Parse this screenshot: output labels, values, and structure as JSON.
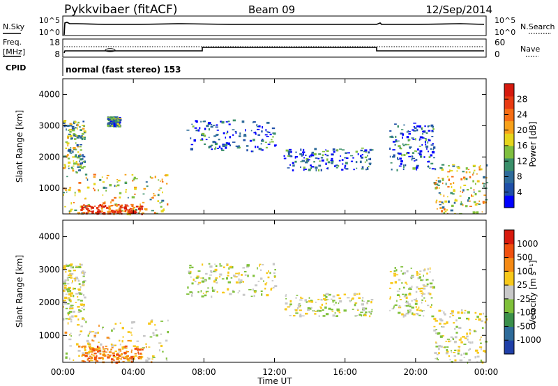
{
  "header": {
    "station": "Pykkvibaer (fitACF)",
    "beam": "Beam 09",
    "date": "12/Sep/2014"
  },
  "summary_panels": {
    "nsky_label": "N.Sky",
    "nsky_ticks": [
      "10^5",
      "10^0"
    ],
    "nsearch_label": "N.Search",
    "nsearch_ticks": [
      "10^5",
      "10^0"
    ],
    "freq_label_1": "Freq.",
    "freq_label_2": "[MHz]",
    "freq_ticks": [
      "18",
      "8"
    ],
    "nave_label": "Nave",
    "nave_ticks": [
      "60",
      "0"
    ],
    "cpid_label": "CPID",
    "cpid_text": "normal (fast stereo) 153"
  },
  "power_colorbar": {
    "label": "Power [dB]",
    "ticks": [
      "28",
      "24",
      "20",
      "16",
      "12",
      "8",
      "4"
    ],
    "colors": [
      "#0000ff",
      "#1f4fa8",
      "#2e6b9a",
      "#3a8f6a",
      "#7fbf3f",
      "#e6d51c",
      "#f7a11a",
      "#f56d14",
      "#e83a12",
      "#d61a0e"
    ]
  },
  "velocity_colorbar": {
    "label": "Velocity [m s⁻¹]",
    "ticks": [
      "1000",
      "500",
      "100",
      "25",
      "-25",
      "-100",
      "-500",
      "-1000"
    ],
    "colors": [
      "#1f3fa8",
      "#2e6b9a",
      "#3a8f4a",
      "#7fc03a",
      "#c8c8c8",
      "#f7c81a",
      "#f58a14",
      "#f0500f",
      "#d81a0e"
    ]
  },
  "chart_data": [
    {
      "type": "heatmap",
      "title": "Beam 09",
      "quantity": "Power [dB]",
      "ylabel": "Slant Range [km]",
      "ylim": [
        180,
        4500
      ],
      "yticks": [
        1000,
        2000,
        3000,
        4000
      ],
      "xlim": [
        0,
        24
      ],
      "xticks": [
        "00:00",
        "04:00",
        "08:00",
        "12:00",
        "16:00",
        "20:00",
        "00:00"
      ],
      "color_range": [
        0,
        30
      ],
      "echo_regions": [
        {
          "t0": 0.0,
          "t1": 1.2,
          "r0": 1500,
          "r1": 3200,
          "value": 12
        },
        {
          "t0": 0.0,
          "t1": 6.0,
          "r0": 200,
          "r1": 1500,
          "value": 16
        },
        {
          "t0": 1.0,
          "t1": 4.5,
          "r0": 200,
          "r1": 500,
          "value": 26
        },
        {
          "t0": 2.5,
          "t1": 3.2,
          "r0": 3000,
          "r1": 3300,
          "value": 8
        },
        {
          "t0": 7.0,
          "t1": 12.0,
          "r0": 2200,
          "r1": 3200,
          "value": 6
        },
        {
          "t0": 12.5,
          "t1": 17.5,
          "r0": 1600,
          "r1": 2300,
          "value": 6
        },
        {
          "t0": 18.5,
          "t1": 21.0,
          "r0": 1600,
          "r1": 3100,
          "value": 6
        },
        {
          "t0": 21.0,
          "t1": 24.0,
          "r0": 200,
          "r1": 1800,
          "value": 16
        }
      ]
    },
    {
      "type": "heatmap",
      "quantity": "Velocity [m s⁻¹]",
      "ylabel": "Slant Range [km]",
      "ylim": [
        180,
        4500
      ],
      "yticks": [
        1000,
        2000,
        3000,
        4000
      ],
      "xlim": [
        0,
        24
      ],
      "xticks": [
        "00:00",
        "04:00",
        "08:00",
        "12:00",
        "16:00",
        "20:00",
        "00:00"
      ],
      "xlabel": "Time UT",
      "color_range": [
        -1000,
        1000
      ],
      "echo_regions": [
        {
          "t0": 0.0,
          "t1": 1.2,
          "r0": 1500,
          "r1": 3200,
          "value": 0
        },
        {
          "t0": 0.0,
          "t1": 6.0,
          "r0": 200,
          "r1": 1500,
          "value": -100
        },
        {
          "t0": 1.0,
          "t1": 4.5,
          "r0": 200,
          "r1": 700,
          "value": -500
        },
        {
          "t0": 7.0,
          "t1": 12.0,
          "r0": 2200,
          "r1": 3200,
          "value": 0
        },
        {
          "t0": 12.5,
          "t1": 17.5,
          "r0": 1600,
          "r1": 2300,
          "value": 0
        },
        {
          "t0": 18.5,
          "t1": 21.0,
          "r0": 1600,
          "r1": 3100,
          "value": 0
        },
        {
          "t0": 21.0,
          "t1": 24.0,
          "r0": 200,
          "r1": 1800,
          "value": -25
        }
      ]
    }
  ]
}
